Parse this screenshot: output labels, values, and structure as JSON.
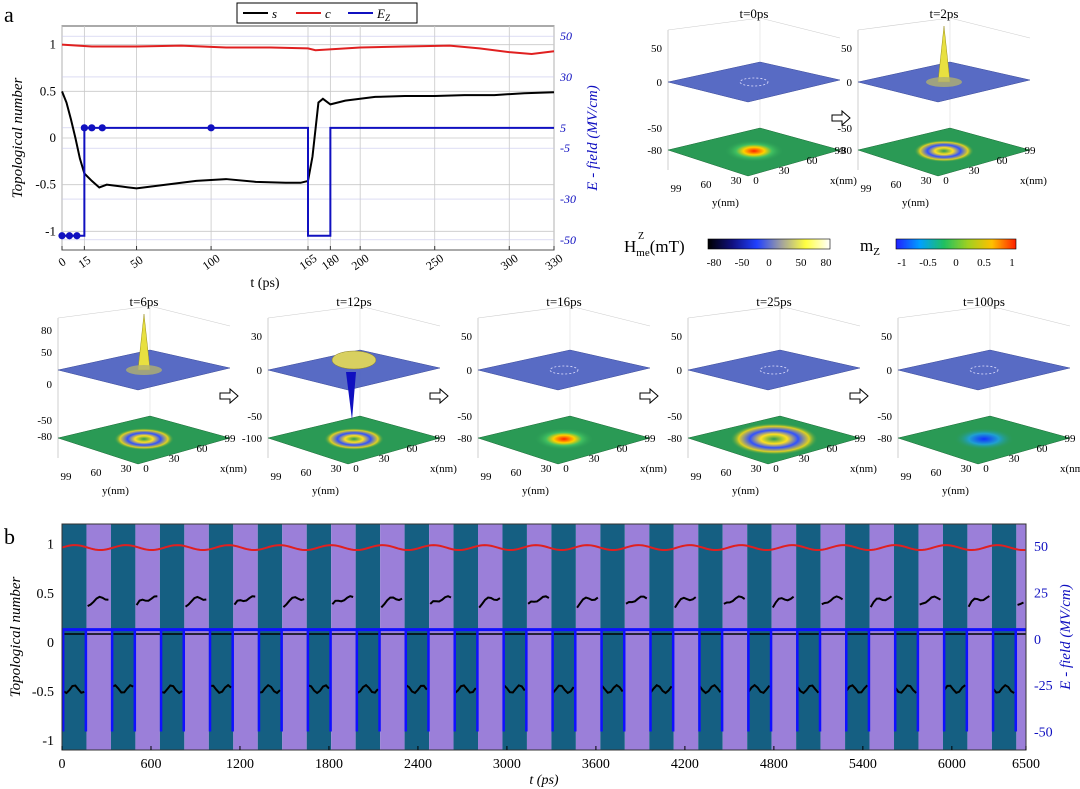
{
  "panel_a": {
    "letter": "a",
    "legend": [
      "s",
      "c",
      "E",
      "Z"
    ],
    "chart_data": {
      "type": "line",
      "xlabel": "t (ps)",
      "ylabel": "Topological number",
      "y2label": "E - field (MV/cm)",
      "xlim": [
        0,
        330
      ],
      "ylim": [
        -1.2,
        1.2
      ],
      "y2lim": [
        -50,
        50
      ],
      "xticks": [
        "0",
        "15",
        "50",
        "100",
        "165",
        "180",
        "200",
        "250",
        "300",
        "330"
      ],
      "xtick_values": [
        0,
        15,
        50,
        100,
        165,
        180,
        200,
        250,
        300,
        330
      ],
      "yticks": [
        "1",
        "0.5",
        "0",
        "-0.5",
        "-1"
      ],
      "ytick_values": [
        1,
        0.5,
        0,
        -0.5,
        -1
      ],
      "y2ticks": [
        "50",
        "30",
        "5",
        "-5",
        "-30",
        "-50"
      ],
      "y2tick_values": [
        50,
        30,
        5,
        -5,
        -30,
        -50
      ],
      "grid": true,
      "legend_position": "top-center",
      "series": [
        {
          "name": "s",
          "color": "#000000",
          "x": [
            0,
            3,
            6,
            9,
            12,
            15,
            20,
            25,
            30,
            40,
            50,
            70,
            90,
            110,
            130,
            150,
            160,
            165,
            168,
            172,
            175,
            180,
            190,
            200,
            210,
            230,
            250,
            270,
            290,
            310,
            330
          ],
          "y": [
            0.5,
            0.38,
            0.2,
            0.0,
            -0.22,
            -0.38,
            -0.46,
            -0.53,
            -0.5,
            -0.52,
            -0.54,
            -0.5,
            -0.46,
            -0.44,
            -0.47,
            -0.48,
            -0.48,
            -0.46,
            -0.2,
            0.38,
            0.42,
            0.36,
            0.4,
            0.42,
            0.44,
            0.45,
            0.45,
            0.46,
            0.46,
            0.48,
            0.49
          ]
        },
        {
          "name": "c",
          "color": "#e02020",
          "x": [
            0,
            20,
            50,
            80,
            110,
            140,
            165,
            170,
            200,
            230,
            260,
            280,
            300,
            315,
            330
          ],
          "y": [
            1.0,
            0.98,
            0.98,
            0.99,
            0.97,
            0.97,
            0.96,
            0.94,
            0.97,
            0.98,
            0.99,
            0.96,
            0.92,
            0.9,
            0.93
          ]
        },
        {
          "name": "E_Z",
          "color": "#1010c0",
          "axis": "right",
          "x": [
            0,
            15,
            15,
            165,
            165,
            180,
            180,
            330
          ],
          "y": [
            -48,
            -48,
            5,
            5,
            -48,
            -48,
            5,
            5
          ],
          "markers_x": [
            0,
            5,
            10,
            15,
            20,
            27,
            100
          ],
          "markers_y": [
            -48,
            -48,
            -48,
            5,
            5,
            5,
            5
          ]
        }
      ]
    },
    "frames": [
      {
        "label": "t=0ps",
        "zticks": [
          "50",
          "0",
          "-50",
          "-80"
        ],
        "yticks": [
          "99",
          "60",
          "30"
        ],
        "xticks": [
          "0",
          "30",
          "60",
          "99"
        ],
        "ylabel": "y(nm)",
        "xlabel": "x(nm)",
        "arrow_after": true
      },
      {
        "label": "t=2ps",
        "zticks": [
          "50",
          "0",
          "-50",
          "-80"
        ],
        "yticks": [
          "99",
          "60",
          "30"
        ],
        "xticks": [
          "0",
          "30",
          "60",
          "99"
        ],
        "ylabel": "y(nm)",
        "xlabel": "x(nm)",
        "arrow_after": false
      }
    ],
    "colorbars": [
      {
        "label": "H",
        "sup": "Z",
        "sub": "me",
        "unit": "(mT)",
        "ticks": [
          "-80",
          "-50",
          "0",
          "50",
          "80"
        ],
        "stops": [
          "#000000",
          "#101080",
          "#2040ff",
          "#a0a0a0",
          "#ffff40",
          "#ffffff"
        ]
      },
      {
        "label": "m",
        "sub": "Z",
        "ticks": [
          "-1",
          "-0.5",
          "0",
          "0.5",
          "1"
        ],
        "stops": [
          "#2020ff",
          "#00a0ff",
          "#20c060",
          "#a0d020",
          "#ffc000",
          "#ff2000"
        ]
      }
    ]
  },
  "frames_row": [
    {
      "label": "t=6ps",
      "zticks": [
        "80",
        "50",
        "0",
        "-50",
        "-80"
      ],
      "yticks": [
        "99",
        "60",
        "30"
      ],
      "xticks": [
        "0",
        "30",
        "60",
        "99"
      ],
      "ylabel": "y(nm)",
      "xlabel": "x(nm)"
    },
    {
      "label": "t=12ps",
      "zticks": [
        "30",
        "0",
        "-50",
        "-100"
      ],
      "yticks": [
        "99",
        "60",
        "30"
      ],
      "xticks": [
        "0",
        "30",
        "60",
        "99"
      ],
      "ylabel": "y(nm)",
      "xlabel": "x(nm)"
    },
    {
      "label": "t=16ps",
      "zticks": [
        "50",
        "0",
        "-50",
        "-80"
      ],
      "yticks": [
        "99",
        "60",
        "30"
      ],
      "xticks": [
        "0",
        "30",
        "60",
        "99"
      ],
      "ylabel": "y(nm)",
      "xlabel": "x(nm)"
    },
    {
      "label": "t=25ps",
      "zticks": [
        "50",
        "0",
        "-50",
        "-80"
      ],
      "yticks": [
        "99",
        "60",
        "30"
      ],
      "xticks": [
        "0",
        "30",
        "60",
        "99"
      ],
      "ylabel": "y(nm)",
      "xlabel": "x(nm)"
    },
    {
      "label": "t=100ps",
      "zticks": [
        "50",
        "0",
        "-50",
        "-80"
      ],
      "yticks": [
        "99",
        "60",
        "30"
      ],
      "xticks": [
        "0",
        "30",
        "60",
        "99"
      ],
      "ylabel": "y(nm)",
      "xlabel": "x(nm)"
    }
  ],
  "panel_b": {
    "letter": "b",
    "chart_data": {
      "type": "line",
      "xlabel": "t (ps)",
      "ylabel": "Topological number",
      "y2label": "E - field (MV/cm)",
      "xlim": [
        0,
        6500
      ],
      "ylim": [
        -1.1,
        1.2
      ],
      "y2lim": [
        -60,
        62
      ],
      "xticks": [
        "0",
        "600",
        "1200",
        "1800",
        "2400",
        "3000",
        "3600",
        "4200",
        "4800",
        "5400",
        "6000",
        "6500"
      ],
      "xtick_values": [
        0,
        600,
        1200,
        1800,
        2400,
        3000,
        3600,
        4200,
        4800,
        5400,
        6000,
        6500
      ],
      "yticks": [
        "1",
        "0.5",
        "0",
        "-0.5",
        "-1"
      ],
      "ytick_values": [
        1,
        0.5,
        0,
        -0.5,
        -1
      ],
      "y2ticks": [
        "50",
        "25",
        "0",
        "-25",
        "-50"
      ],
      "y2tick_values": [
        50,
        25,
        0,
        -25,
        -50
      ],
      "period": 330,
      "cycles": 20,
      "shade_colors": [
        "#155f82",
        "#9b7fd9"
      ],
      "series": [
        {
          "name": "c",
          "color": "#e02020",
          "base": 0.96,
          "amplitude": 0.025
        },
        {
          "name": "s",
          "color": "#000000",
          "low": -0.48,
          "high": 0.45
        },
        {
          "name": "E_Z",
          "color": "#1010ff",
          "axis": "right",
          "high": 5,
          "low": -50
        }
      ],
      "hlines": [
        {
          "y": 0.08,
          "color": "#000000"
        },
        {
          "y2": 5,
          "color": "#1010ff"
        }
      ]
    }
  }
}
